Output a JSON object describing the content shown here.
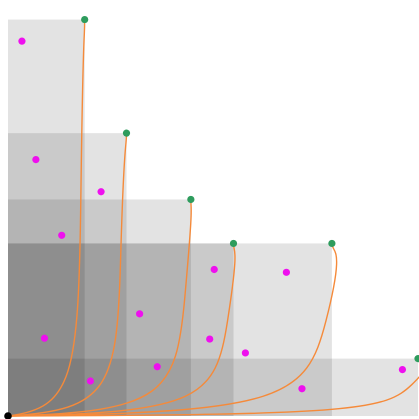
{
  "chart_data": {
    "type": "scatter",
    "xlim": [
      0,
      100
    ],
    "ylim": [
      0,
      100
    ],
    "grid": false,
    "legend": "none",
    "origin": {
      "x": 0,
      "y": 0
    },
    "pareto_points": [
      {
        "x": 18.7,
        "y": 97.4
      },
      {
        "x": 28.9,
        "y": 69.5
      },
      {
        "x": 44.6,
        "y": 53.2
      },
      {
        "x": 55.0,
        "y": 42.4
      },
      {
        "x": 79.0,
        "y": 42.4
      },
      {
        "x": 100.0,
        "y": 14.1
      }
    ],
    "scatter_points": [
      {
        "x": 3.4,
        "y": 92.1
      },
      {
        "x": 6.8,
        "y": 63.0
      },
      {
        "x": 22.7,
        "y": 55.1
      },
      {
        "x": 13.1,
        "y": 44.4
      },
      {
        "x": 50.3,
        "y": 36.0
      },
      {
        "x": 67.9,
        "y": 35.3
      },
      {
        "x": 32.1,
        "y": 25.1
      },
      {
        "x": 49.2,
        "y": 18.9
      },
      {
        "x": 8.9,
        "y": 19.1
      },
      {
        "x": 57.9,
        "y": 15.5
      },
      {
        "x": 36.4,
        "y": 12.1
      },
      {
        "x": 20.1,
        "y": 8.6
      },
      {
        "x": 71.7,
        "y": 6.7
      },
      {
        "x": 96.2,
        "y": 11.4
      }
    ],
    "colors": {
      "region": "#e0e0e0",
      "region_opacity": 0.9,
      "curve": "#f58a3a",
      "pareto_point": "#2e9c5d",
      "scatter_point": "#ee10ee",
      "origin_point": "#000000"
    }
  }
}
